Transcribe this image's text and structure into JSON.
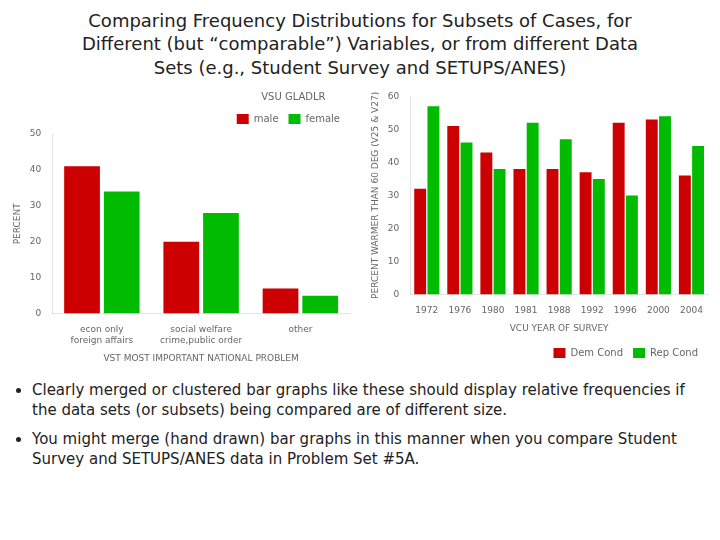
{
  "title": [
    "Comparing Frequency Distributions for Subsets of Cases, for",
    "Different (but “comparable”) Variables, or from different Data",
    "Sets (e.g., Student Survey and SETUPS/ANES)"
  ],
  "annotations": [
    "Clearly merged or clustered bar graphs like these should display relative frequencies if the data sets (or subsets) being compared are of different size.",
    "You might merge (hand drawn) bar graphs in this manner when you compare Student Survey and SETUPS/ANES data in Problem Set #5A."
  ],
  "chart_data": [
    {
      "type": "bar",
      "categories": [
        "econ only\nforeign affairs",
        "social welfare\ncrime,public order",
        "other"
      ],
      "series": [
        {
          "name": "male",
          "color": "#cc0000",
          "values": [
            41,
            20,
            7
          ]
        },
        {
          "name": "female",
          "color": "#00bb00",
          "values": [
            34,
            28,
            5
          ]
        }
      ],
      "xlabel": "VST MOST IMPORTANT NATIONAL PROBLEM",
      "ylabel": "PERCENT",
      "legend": "upper right",
      "legend_title": "VSU GLADLR",
      "ylim": [
        0,
        50
      ],
      "yticks": [
        0,
        10,
        20,
        30,
        40,
        50
      ],
      "grid": false
    },
    {
      "type": "bar",
      "categories": [
        "1972",
        "1976",
        "1980",
        "1981",
        "1988",
        "1992",
        "1996",
        "2000",
        "2004"
      ],
      "series": [
        {
          "name": "Dem Cond",
          "color": "#cc0000",
          "values": [
            32,
            51,
            43,
            38,
            38,
            37,
            52,
            53,
            36
          ]
        },
        {
          "name": "Rep Cond",
          "color": "#00bb00",
          "values": [
            57,
            46,
            38,
            52,
            47,
            35,
            30,
            54,
            45
          ]
        }
      ],
      "xlabel": "VCU YEAR OF SURVEY",
      "ylabel": "PERCENT WARMER THAN 60 DEG (V25 & V27)",
      "legend": "lower right",
      "ylim": [
        0,
        60
      ],
      "yticks": [
        0,
        10,
        20,
        30,
        40,
        50,
        60
      ],
      "grid": false
    }
  ]
}
